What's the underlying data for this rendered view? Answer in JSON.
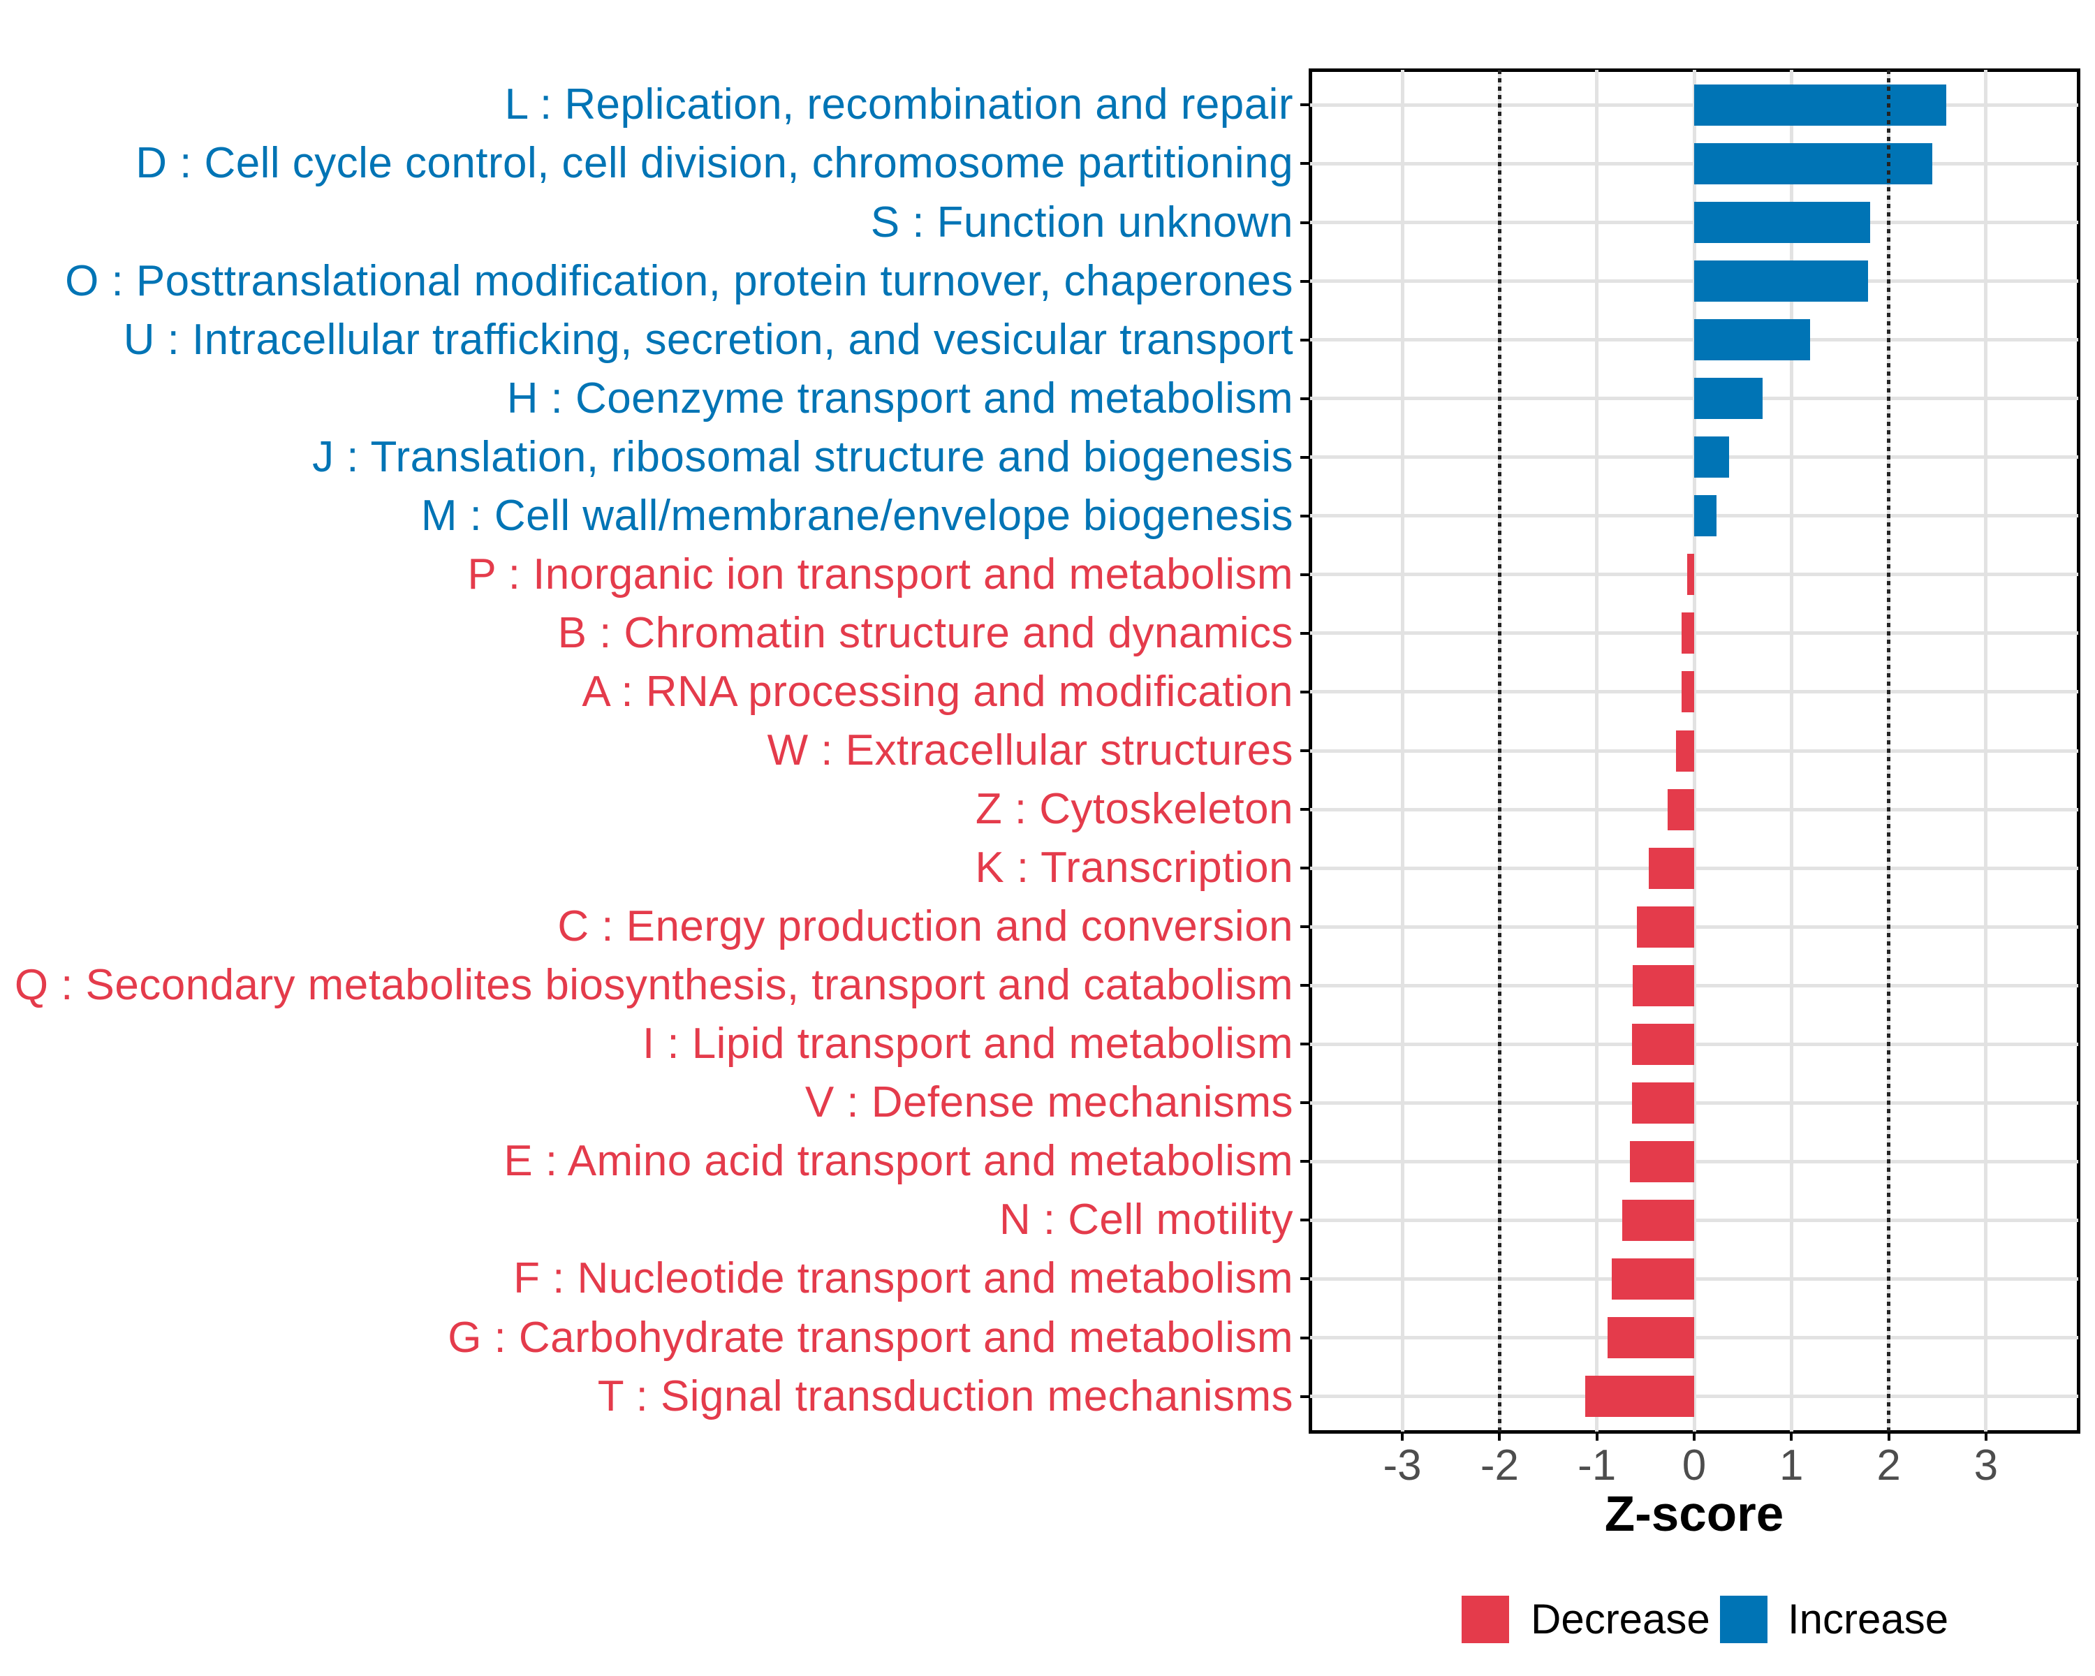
{
  "chart_data": {
    "type": "bar",
    "orientation": "horizontal",
    "xlabel": "Z-score",
    "x_ticks": [
      "-3",
      "-2",
      "-1",
      "0",
      "1",
      "2",
      "3"
    ],
    "x_tick_values": [
      -3,
      -2,
      -1,
      0,
      1,
      2,
      3
    ],
    "xlim": [
      -3.95,
      3.95
    ],
    "threshold_lines": [
      -2,
      2
    ],
    "grid": true,
    "legend_position": "bottom",
    "categories": [
      {
        "label": "L : Replication, recombination and repair",
        "value": 2.59,
        "direction": "Increase"
      },
      {
        "label": "D : Cell cycle control, cell division, chromosome partitioning",
        "value": 2.45,
        "direction": "Increase"
      },
      {
        "label": "S : Function unknown",
        "value": 1.81,
        "direction": "Increase"
      },
      {
        "label": "O : Posttranslational modification, protein turnover, chaperones",
        "value": 1.79,
        "direction": "Increase"
      },
      {
        "label": "U : Intracellular trafficking, secretion, and vesicular transport",
        "value": 1.19,
        "direction": "Increase"
      },
      {
        "label": "H : Coenzyme transport and metabolism",
        "value": 0.7,
        "direction": "Increase"
      },
      {
        "label": "J : Translation, ribosomal structure and biogenesis",
        "value": 0.36,
        "direction": "Increase"
      },
      {
        "label": "M : Cell wall/membrane/envelope biogenesis",
        "value": 0.23,
        "direction": "Increase"
      },
      {
        "label": "P : Inorganic ion transport and metabolism",
        "value": -0.07,
        "direction": "Decrease"
      },
      {
        "label": "B : Chromatin structure and dynamics",
        "value": -0.13,
        "direction": "Decrease"
      },
      {
        "label": "A : RNA processing and modification",
        "value": -0.13,
        "direction": "Decrease"
      },
      {
        "label": "W : Extracellular structures",
        "value": -0.19,
        "direction": "Decrease"
      },
      {
        "label": "Z : Cytoskeleton",
        "value": -0.27,
        "direction": "Decrease"
      },
      {
        "label": "K : Transcription",
        "value": -0.47,
        "direction": "Decrease"
      },
      {
        "label": "C : Energy production and conversion",
        "value": -0.59,
        "direction": "Decrease"
      },
      {
        "label": "Q : Secondary metabolites biosynthesis, transport and catabolism",
        "value": -0.63,
        "direction": "Decrease"
      },
      {
        "label": "I : Lipid transport and metabolism",
        "value": -0.64,
        "direction": "Decrease"
      },
      {
        "label": "V : Defense mechanisms",
        "value": -0.64,
        "direction": "Decrease"
      },
      {
        "label": "E : Amino acid transport and metabolism",
        "value": -0.66,
        "direction": "Decrease"
      },
      {
        "label": "N : Cell motility",
        "value": -0.74,
        "direction": "Decrease"
      },
      {
        "label": "F : Nucleotide transport and metabolism",
        "value": -0.85,
        "direction": "Decrease"
      },
      {
        "label": "G : Carbohydrate transport and metabolism",
        "value": -0.89,
        "direction": "Decrease"
      },
      {
        "label": "T : Signal transduction mechanisms",
        "value": -1.12,
        "direction": "Decrease"
      }
    ],
    "legend": [
      {
        "label": "Decrease",
        "color": "#E43B4B"
      },
      {
        "label": "Increase",
        "color": "#0074B5"
      }
    ],
    "colors": {
      "increase": "#0074B5",
      "decrease": "#E43B4B",
      "grid": "#E2E2E2",
      "axis_text": "#4D4D4D",
      "panel_border": "#000000",
      "threshold_line": "#222222"
    }
  }
}
